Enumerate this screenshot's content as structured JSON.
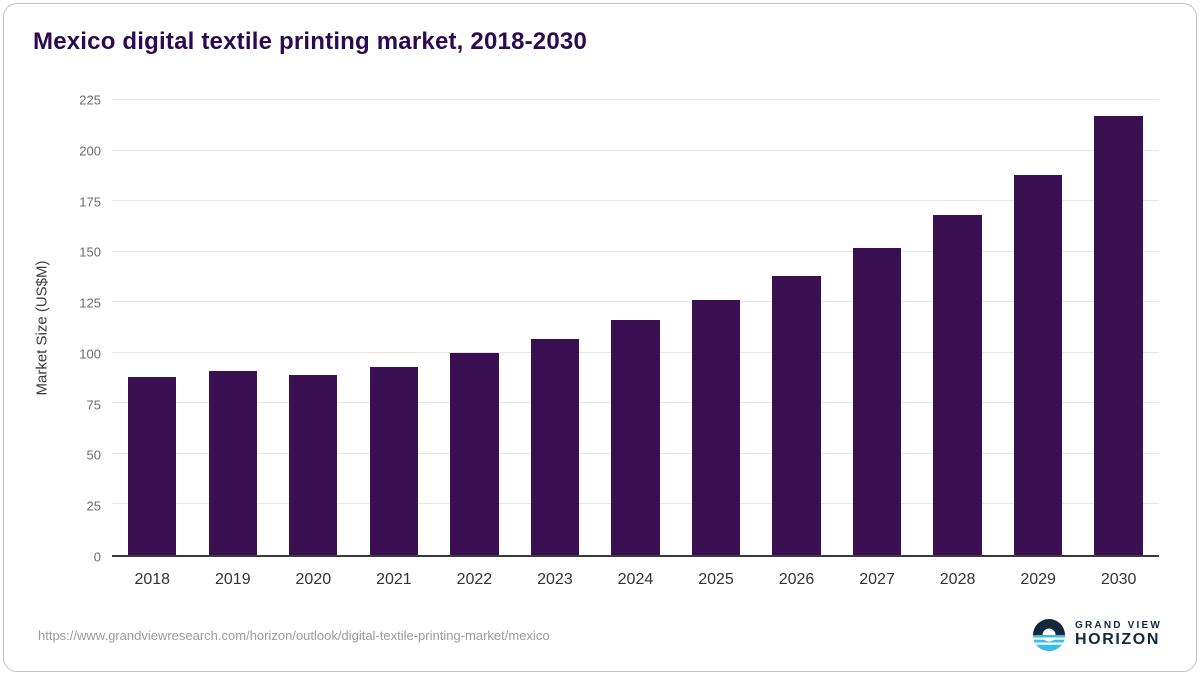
{
  "title": "Mexico digital textile printing market, 2018-2030",
  "footer": {
    "source_url": "https://www.grandviewresearch.com/horizon/outlook/digital-textile-printing-market/mexico",
    "logo_top": "GRAND VIEW",
    "logo_bottom": "HORIZON"
  },
  "colors": {
    "bar": "#3b1053",
    "title": "#2d0a50",
    "grid": "#e7e7e7",
    "axis": "#3a3a3a",
    "y_tick_label": "#6b6b6b",
    "x_tick_label": "#333333",
    "url_text": "#9b9b9b",
    "logo_navy": "#12283c",
    "logo_blue": "#3bbde9"
  },
  "chart_data": {
    "type": "bar",
    "title": "Mexico digital textile printing market, 2018-2030",
    "categories": [
      "2018",
      "2019",
      "2020",
      "2021",
      "2022",
      "2023",
      "2024",
      "2025",
      "2026",
      "2027",
      "2028",
      "2029",
      "2030"
    ],
    "values": [
      88,
      91,
      89,
      93,
      100,
      107,
      116,
      126,
      138,
      152,
      168,
      188,
      217
    ],
    "xlabel": "",
    "ylabel": "Market Size (US$M)",
    "ylim": [
      0,
      225
    ],
    "yticks": [
      0,
      25,
      50,
      75,
      100,
      125,
      150,
      175,
      200,
      225
    ],
    "grid": "horizontal",
    "legend": "none"
  }
}
